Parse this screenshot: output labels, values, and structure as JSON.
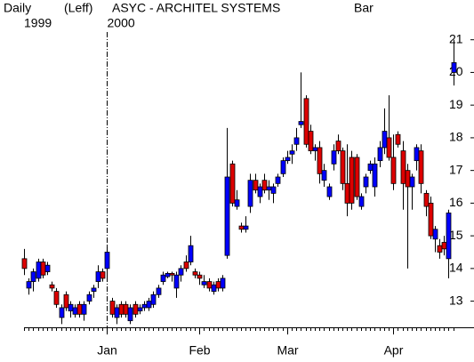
{
  "chart_data": {
    "type": "candlestick",
    "period": "Daily",
    "note": "(Leff)",
    "title": "ASYC  -  ARCHITEL SYSTEMS",
    "style": "Bar",
    "year_markers": [
      "1999",
      "2000"
    ],
    "up_color": "#0000ff",
    "down_color": "#dd0000",
    "ylim": [
      12.2,
      21.4
    ],
    "yticks": [
      13,
      14,
      15,
      16,
      17,
      18,
      19,
      20,
      21
    ],
    "categories": [
      null,
      null,
      null,
      null,
      null,
      null,
      null,
      null,
      null,
      null,
      null,
      null,
      null,
      null,
      null,
      null,
      null,
      null,
      "Jan",
      null,
      null,
      null,
      null,
      null,
      null,
      null,
      null,
      null,
      null,
      null,
      null,
      null,
      null,
      null,
      null,
      null,
      null,
      null,
      "Feb",
      null,
      null,
      null,
      null,
      null,
      null,
      null,
      null,
      null,
      null,
      null,
      null,
      null,
      null,
      null,
      null,
      null,
      null,
      "Mar",
      null,
      null,
      null,
      null,
      null,
      null,
      null,
      null,
      null,
      null,
      null,
      null,
      null,
      null,
      null,
      null,
      null,
      null,
      null,
      null,
      null,
      null,
      "Apr",
      null,
      null,
      null,
      null,
      null,
      null,
      null,
      null,
      null,
      null,
      null,
      null,
      null
    ],
    "open": [
      14.3,
      13.4,
      13.6,
      13.7,
      14.2,
      13.9,
      13.5,
      13.3,
      12.5,
      13.2,
      12.7,
      12.6,
      12.9,
      12.6,
      13.0,
      13.3,
      13.6,
      13.9,
      14.0,
      13.0,
      12.5,
      12.9,
      12.9,
      12.4,
      12.9,
      12.7,
      12.8,
      12.8,
      12.9,
      13.2,
      13.6,
      13.75,
      13.85,
      13.4,
      13.8,
      14.2,
      14.2,
      13.9,
      13.8,
      13.5,
      13.6,
      13.3,
      13.6,
      13.4,
      14.4,
      17.2,
      15.9,
      15.3,
      15.2,
      15.9,
      16.7,
      16.2,
      16.7,
      16.4,
      16.3,
      16.6,
      16.9,
      17.3,
      17.5,
      17.8,
      18.4,
      19.2,
      18.2,
      17.6,
      17.7,
      16.7,
      16.2,
      17.2,
      17.9,
      17.6,
      16.6,
      17.4,
      17.4,
      15.9,
      16.5,
      17.0,
      16.5,
      17.3,
      17.7,
      18.0,
      17.4,
      18.1,
      17.6,
      17.0,
      16.5,
      17.3,
      17.6,
      16.3,
      16.0,
      14.9,
      14.7,
      14.8,
      14.3,
      20.0
    ],
    "high": [
      14.6,
      13.7,
      14.0,
      14.3,
      14.3,
      14.2,
      13.6,
      13.4,
      12.9,
      13.3,
      13.0,
      12.9,
      13.0,
      13.0,
      13.3,
      13.5,
      14.1,
      14.0,
      14.7,
      13.1,
      12.9,
      13.0,
      13.0,
      12.9,
      13.0,
      12.9,
      13.0,
      13.1,
      13.3,
      13.5,
      13.9,
      13.9,
      13.9,
      13.9,
      14.1,
      14.4,
      15.0,
      14.0,
      13.9,
      13.8,
      13.7,
      13.6,
      13.7,
      13.8,
      18.3,
      17.3,
      16.4,
      15.4,
      15.6,
      16.9,
      16.9,
      16.6,
      16.9,
      16.7,
      16.6,
      16.9,
      17.4,
      17.6,
      17.8,
      18.3,
      20.0,
      19.3,
      18.4,
      17.8,
      17.9,
      17.2,
      16.6,
      17.8,
      18.1,
      17.7,
      17.8,
      17.6,
      17.5,
      16.3,
      16.9,
      17.3,
      17.4,
      17.9,
      18.9,
      19.3,
      18.1,
      18.2,
      17.9,
      17.2,
      16.9,
      17.8,
      17.8,
      16.4,
      16.2,
      15.3,
      14.9,
      15.0,
      15.8,
      21.0
    ],
    "low": [
      13.8,
      13.2,
      13.3,
      13.6,
      13.7,
      13.8,
      13.3,
      12.8,
      12.3,
      12.7,
      12.5,
      12.5,
      12.5,
      12.4,
      12.9,
      13.1,
      13.4,
      13.6,
      13.6,
      12.5,
      12.3,
      12.5,
      12.5,
      12.3,
      12.5,
      12.6,
      12.7,
      12.7,
      12.8,
      13.1,
      13.5,
      13.7,
      13.6,
      13.1,
      13.6,
      13.9,
      14.1,
      13.7,
      13.5,
      13.4,
      13.3,
      13.2,
      13.3,
      13.3,
      14.3,
      15.9,
      15.8,
      15.1,
      15.1,
      15.7,
      16.3,
      16.0,
      16.3,
      16.1,
      16.0,
      16.5,
      16.8,
      17.2,
      17.2,
      17.6,
      18.3,
      17.7,
      17.5,
      17.3,
      16.6,
      16.5,
      16.1,
      17.0,
      17.5,
      16.4,
      15.6,
      15.8,
      16.1,
      15.8,
      16.3,
      16.9,
      16.2,
      17.1,
      17.5,
      17.3,
      16.4,
      17.7,
      15.8,
      14.0,
      15.8,
      17.0,
      16.3,
      15.6,
      14.9,
      14.5,
      14.3,
      14.4,
      13.7,
      19.6
    ],
    "close": [
      14.0,
      13.6,
      13.9,
      14.2,
      13.8,
      14.1,
      13.4,
      12.9,
      12.8,
      12.8,
      12.9,
      12.8,
      12.6,
      12.9,
      13.2,
      13.4,
      13.9,
      13.7,
      14.5,
      12.6,
      12.8,
      12.6,
      12.6,
      12.8,
      12.6,
      12.8,
      12.9,
      13.0,
      13.2,
      13.4,
      13.8,
      13.85,
      13.8,
      13.8,
      14.0,
      14.0,
      14.7,
      13.8,
      13.7,
      13.6,
      13.4,
      13.5,
      13.4,
      13.7,
      16.8,
      16.0,
      16.1,
      15.2,
      15.3,
      16.7,
      16.4,
      16.5,
      16.4,
      16.5,
      16.5,
      16.8,
      17.3,
      17.4,
      17.6,
      18.0,
      18.5,
      17.8,
      17.6,
      17.7,
      16.9,
      17.0,
      16.5,
      17.6,
      17.6,
      16.6,
      16.0,
      16.0,
      16.2,
      16.2,
      16.8,
      17.2,
      17.2,
      17.7,
      18.2,
      17.4,
      16.6,
      17.8,
      16.6,
      16.5,
      16.8,
      17.7,
      16.6,
      15.9,
      15.0,
      15.2,
      14.5,
      14.6,
      15.7,
      20.3
    ]
  }
}
